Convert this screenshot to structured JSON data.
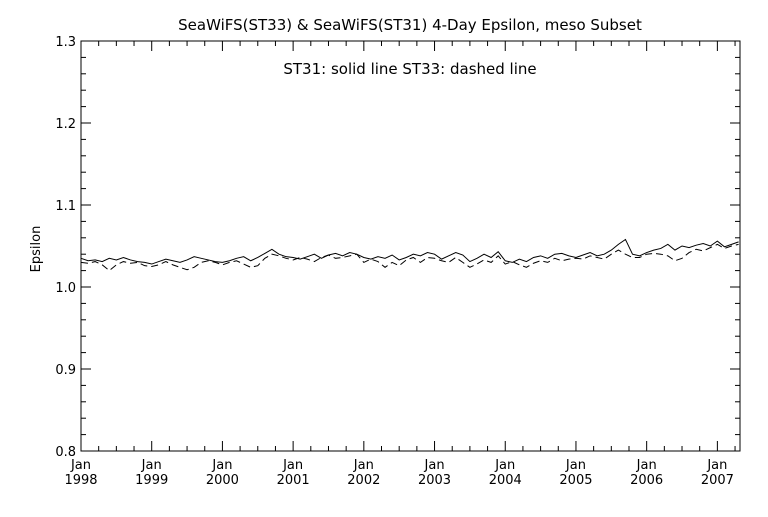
{
  "chart_data": {
    "type": "line",
    "title": "SeaWiFS(ST33) & SeaWiFS(ST31) 4-Day Epsilon, meso Subset",
    "annotation": "ST31: solid line   ST33: dashed line",
    "xlabel": "",
    "ylabel": "Epsilon",
    "xlim": [
      1998.0,
      2007.32
    ],
    "ylim": [
      0.8,
      1.3
    ],
    "y_ticks": [
      "0.8",
      "0.9",
      "1.0",
      "1.1",
      "1.2",
      "1.3"
    ],
    "x_ticks": [
      {
        "value": 1998.0,
        "month": "Jan",
        "year": "1998"
      },
      {
        "value": 1999.0,
        "month": "Jan",
        "year": "1999"
      },
      {
        "value": 2000.0,
        "month": "Jan",
        "year": "2000"
      },
      {
        "value": 2001.0,
        "month": "Jan",
        "year": "2001"
      },
      {
        "value": 2002.0,
        "month": "Jan",
        "year": "2002"
      },
      {
        "value": 2003.0,
        "month": "Jan",
        "year": "2003"
      },
      {
        "value": 2004.0,
        "month": "Jan",
        "year": "2004"
      },
      {
        "value": 2005.0,
        "month": "Jan",
        "year": "2005"
      },
      {
        "value": 2006.0,
        "month": "Jan",
        "year": "2006"
      },
      {
        "value": 2007.0,
        "month": "Jan",
        "year": "2007"
      }
    ],
    "x": [
      1998.0,
      1998.1,
      1998.2,
      1998.3,
      1998.4,
      1998.5,
      1998.6,
      1998.7,
      1998.8,
      1998.9,
      1999.0,
      1999.1,
      1999.2,
      1999.3,
      1999.4,
      1999.5,
      1999.6,
      1999.7,
      1999.8,
      1999.9,
      2000.0,
      2000.1,
      2000.2,
      2000.3,
      2000.4,
      2000.5,
      2000.6,
      2000.7,
      2000.8,
      2000.9,
      2001.0,
      2001.1,
      2001.2,
      2001.3,
      2001.4,
      2001.5,
      2001.6,
      2001.7,
      2001.8,
      2001.9,
      2002.0,
      2002.1,
      2002.2,
      2002.3,
      2002.4,
      2002.5,
      2002.6,
      2002.7,
      2002.8,
      2002.9,
      2003.0,
      2003.1,
      2003.2,
      2003.3,
      2003.4,
      2003.5,
      2003.6,
      2003.7,
      2003.8,
      2003.9,
      2004.0,
      2004.1,
      2004.2,
      2004.3,
      2004.4,
      2004.5,
      2004.6,
      2004.7,
      2004.8,
      2004.9,
      2005.0,
      2005.1,
      2005.2,
      2005.3,
      2005.4,
      2005.5,
      2005.6,
      2005.7,
      2005.8,
      2005.9,
      2006.0,
      2006.1,
      2006.2,
      2006.3,
      2006.4,
      2006.5,
      2006.6,
      2006.7,
      2006.8,
      2006.9,
      2007.0,
      2007.1,
      2007.2,
      2007.3
    ],
    "series": [
      {
        "name": "ST31",
        "style": "solid",
        "color": "#000000",
        "values": [
          1.035,
          1.032,
          1.033,
          1.031,
          1.035,
          1.033,
          1.036,
          1.033,
          1.031,
          1.03,
          1.028,
          1.031,
          1.034,
          1.032,
          1.03,
          1.033,
          1.037,
          1.035,
          1.033,
          1.031,
          1.03,
          1.032,
          1.035,
          1.037,
          1.032,
          1.036,
          1.041,
          1.046,
          1.04,
          1.037,
          1.036,
          1.034,
          1.037,
          1.04,
          1.035,
          1.039,
          1.041,
          1.038,
          1.042,
          1.04,
          1.036,
          1.034,
          1.037,
          1.035,
          1.039,
          1.033,
          1.036,
          1.04,
          1.038,
          1.042,
          1.04,
          1.034,
          1.038,
          1.042,
          1.039,
          1.031,
          1.035,
          1.04,
          1.036,
          1.043,
          1.032,
          1.03,
          1.034,
          1.031,
          1.036,
          1.038,
          1.035,
          1.04,
          1.041,
          1.038,
          1.036,
          1.039,
          1.042,
          1.038,
          1.04,
          1.045,
          1.052,
          1.058,
          1.04,
          1.038,
          1.042,
          1.045,
          1.047,
          1.052,
          1.045,
          1.05,
          1.048,
          1.051,
          1.053,
          1.05,
          1.056,
          1.049,
          1.052,
          1.055
        ]
      },
      {
        "name": "ST33",
        "style": "dashed",
        "color": "#000000",
        "values": [
          1.03,
          1.029,
          1.031,
          1.027,
          1.02,
          1.027,
          1.031,
          1.029,
          1.03,
          1.026,
          1.025,
          1.027,
          1.031,
          1.027,
          1.024,
          1.021,
          1.024,
          1.03,
          1.032,
          1.03,
          1.027,
          1.03,
          1.032,
          1.028,
          1.024,
          1.026,
          1.035,
          1.04,
          1.038,
          1.035,
          1.033,
          1.036,
          1.034,
          1.031,
          1.036,
          1.039,
          1.035,
          1.036,
          1.038,
          1.04,
          1.03,
          1.034,
          1.031,
          1.024,
          1.03,
          1.026,
          1.033,
          1.036,
          1.03,
          1.036,
          1.035,
          1.032,
          1.03,
          1.036,
          1.03,
          1.024,
          1.028,
          1.033,
          1.03,
          1.038,
          1.028,
          1.031,
          1.027,
          1.024,
          1.029,
          1.032,
          1.03,
          1.035,
          1.032,
          1.034,
          1.035,
          1.034,
          1.038,
          1.036,
          1.034,
          1.04,
          1.045,
          1.04,
          1.036,
          1.036,
          1.04,
          1.041,
          1.04,
          1.038,
          1.032,
          1.035,
          1.042,
          1.046,
          1.044,
          1.048,
          1.052,
          1.047,
          1.05,
          1.052
        ]
      }
    ]
  }
}
